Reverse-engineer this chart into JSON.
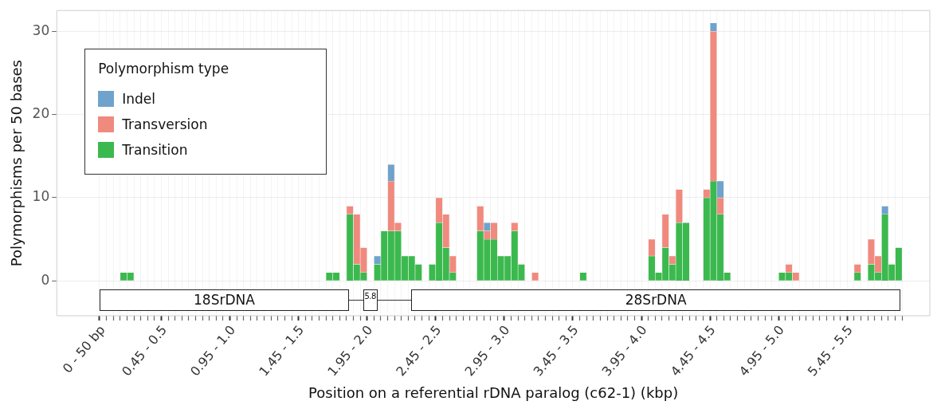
{
  "chart_data": {
    "type": "bar",
    "stacked": true,
    "xlabel": "Position on a referential rDNA paralog (c62-1) (kbp)",
    "ylabel": "Polymorphisms per 50 bases",
    "legend_title": "Polymorphism type",
    "legend": "top left",
    "grid": true,
    "annotations": [
      "18SrDNA",
      "5.8",
      "28SrDNA"
    ],
    "categories": [
      "0 - 50 bp",
      null,
      null,
      null,
      null,
      null,
      null,
      null,
      null,
      "0.45 - 0.5",
      null,
      null,
      null,
      null,
      null,
      null,
      null,
      null,
      null,
      "0.95 - 1.0",
      null,
      null,
      null,
      null,
      null,
      null,
      null,
      null,
      null,
      "1.45 - 1.5",
      null,
      null,
      null,
      null,
      null,
      null,
      null,
      null,
      null,
      "1.95 - 2.0",
      null,
      null,
      null,
      null,
      null,
      null,
      null,
      null,
      null,
      "2.45 - 2.5",
      null,
      null,
      null,
      null,
      null,
      null,
      null,
      null,
      null,
      "2.95 - 3.0",
      null,
      null,
      null,
      null,
      null,
      null,
      null,
      null,
      null,
      "3.45 - 3.5",
      null,
      null,
      null,
      null,
      null,
      null,
      null,
      null,
      null,
      "3.95 - 4.0",
      null,
      null,
      null,
      null,
      null,
      null,
      null,
      null,
      null,
      "4.45 - 4.5",
      null,
      null,
      null,
      null,
      null,
      null,
      null,
      null,
      null,
      "4.95 - 5.0",
      null,
      null,
      null,
      null,
      null,
      null,
      null,
      null,
      null,
      "5.45 - 5.5",
      null,
      null,
      null,
      null,
      null,
      null,
      null
    ],
    "ylim": [
      -4.2,
      32.5
    ],
    "yticks": [
      0,
      10,
      20,
      30
    ],
    "series": [
      {
        "name": "Transition",
        "color": "#3cb94e",
        "values": [
          0,
          0,
          0,
          1,
          1,
          0,
          0,
          0,
          0,
          0,
          0,
          0,
          0,
          0,
          0,
          0,
          0,
          0,
          0,
          0,
          0,
          0,
          0,
          0,
          0,
          0,
          0,
          0,
          0,
          0,
          0,
          0,
          0,
          1,
          1,
          0,
          8,
          2,
          1,
          0,
          2,
          6,
          6,
          6,
          3,
          3,
          2,
          0,
          2,
          7,
          4,
          1,
          0,
          0,
          0,
          6,
          5,
          5,
          3,
          3,
          6,
          2,
          0,
          0,
          0,
          0,
          0,
          0,
          0,
          0,
          1,
          0,
          0,
          0,
          0,
          0,
          0,
          0,
          0,
          0,
          3,
          1,
          4,
          2,
          7,
          7,
          0,
          0,
          10,
          12,
          8,
          1,
          0,
          0,
          0,
          0,
          0,
          0,
          0,
          1,
          1,
          0,
          0,
          0,
          0,
          0,
          0,
          0,
          0,
          0,
          1,
          0,
          2,
          1,
          8,
          2,
          4
        ]
      },
      {
        "name": "Transversion",
        "color": "#f08a7e",
        "values": [
          0,
          0,
          0,
          0,
          0,
          0,
          0,
          0,
          0,
          0,
          0,
          0,
          0,
          0,
          0,
          0,
          0,
          0,
          0,
          0,
          0,
          0,
          0,
          0,
          0,
          0,
          0,
          0,
          0,
          0,
          0,
          0,
          0,
          0,
          0,
          0,
          1,
          6,
          3,
          0,
          0,
          0,
          6,
          1,
          0,
          0,
          0,
          0,
          0,
          3,
          4,
          2,
          0,
          0,
          0,
          3,
          1,
          2,
          0,
          0,
          1,
          0,
          0,
          1,
          0,
          0,
          0,
          0,
          0,
          0,
          0,
          0,
          0,
          0,
          0,
          0,
          0,
          0,
          0,
          0,
          2,
          0,
          4,
          1,
          4,
          0,
          0,
          0,
          1,
          18,
          2,
          0,
          0,
          0,
          0,
          0,
          0,
          0,
          0,
          0,
          1,
          1,
          0,
          0,
          0,
          0,
          0,
          0,
          0,
          0,
          1,
          0,
          3,
          2,
          0,
          0,
          0
        ]
      },
      {
        "name": "Indel",
        "color": "#6fa3cc",
        "values": [
          0,
          0,
          0,
          0,
          0,
          0,
          0,
          0,
          0,
          0,
          0,
          0,
          0,
          0,
          0,
          0,
          0,
          0,
          0,
          0,
          0,
          0,
          0,
          0,
          0,
          0,
          0,
          0,
          0,
          0,
          0,
          0,
          0,
          0,
          0,
          0,
          0,
          0,
          0,
          0,
          1,
          0,
          2,
          0,
          0,
          0,
          0,
          0,
          0,
          0,
          0,
          0,
          0,
          0,
          0,
          0,
          1,
          0,
          0,
          0,
          0,
          0,
          0,
          0,
          0,
          0,
          0,
          0,
          0,
          0,
          0,
          0,
          0,
          0,
          0,
          0,
          0,
          0,
          0,
          0,
          0,
          0,
          0,
          0,
          0,
          0,
          0,
          0,
          0,
          1,
          2,
          0,
          0,
          0,
          0,
          0,
          0,
          0,
          0,
          0,
          0,
          0,
          0,
          0,
          0,
          0,
          0,
          0,
          0,
          0,
          0,
          0,
          0,
          0,
          1,
          0,
          0
        ]
      }
    ]
  }
}
